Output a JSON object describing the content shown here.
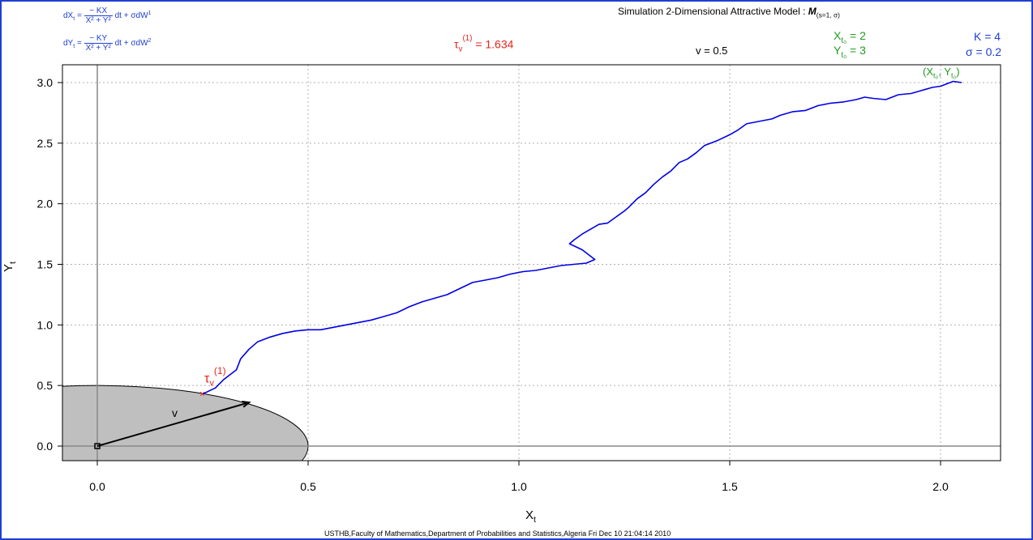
{
  "header": {
    "title": "Simulation 2-Dimensional Attractive Model :",
    "model_symbol": "M",
    "model_params": "(s=1, σ)"
  },
  "equations": {
    "dx_lhs": "dX",
    "dx_num": "− KX",
    "dx_den": "X² + Y²",
    "dx_rhs": "dt + σdW",
    "dy_lhs": "dY",
    "dy_num": "− KY",
    "dy_den": "X² + Y²",
    "dy_rhs": "dt + σdW"
  },
  "annotations": {
    "tau_symbol": "τ",
    "tau_sub": "v",
    "tau_sup": "(1)",
    "tau_value": "= 1.634",
    "v_text": "v = 0.5",
    "x0_text": "X",
    "x0_sub": "t₀",
    "x0_value": "= 2",
    "y0_text": "Y",
    "y0_sub": "t₀",
    "y0_value": "= 3",
    "k_text": "K = 4",
    "sigma_text": "σ = 0.2",
    "start_label": "(X",
    "start_label_mid": ", Y",
    "start_label_end": ")",
    "hit_label": "τ",
    "hit_label_sub": "v",
    "hit_label_sup": "(1)",
    "arrow_label": "v"
  },
  "footer": "USTHB,Faculty of Mathematics,Department of Probabilities and Statistics,Algeria Fri Dec 10 21:04:14 2010",
  "colors": {
    "path": "#0000e6",
    "red": "#e8241c",
    "green": "#1f9b1f",
    "blue": "#1f3fd0",
    "disc_fill": "#bfbfbf",
    "grid": "#b0b0b0"
  },
  "chart_data": {
    "type": "line",
    "xlabel": "X",
    "xlabel_sub": "t",
    "ylabel": "Y",
    "ylabel_sub": "t",
    "xlim": [
      -0.08,
      2.15
    ],
    "ylim": [
      -0.12,
      3.15
    ],
    "x_ticks": [
      0.0,
      0.5,
      1.0,
      1.5,
      2.0
    ],
    "y_ticks": [
      0.0,
      0.5,
      1.0,
      1.5,
      2.0,
      2.5,
      3.0
    ],
    "x_tick_labels": [
      "0.0",
      "0.5",
      "1.0",
      "1.5",
      "2.0"
    ],
    "y_tick_labels": [
      "0.0",
      "0.5",
      "1.0",
      "1.5",
      "2.0",
      "2.5",
      "3.0"
    ],
    "grid": true,
    "disc_radius": 0.5,
    "start_point": [
      2.0,
      3.0
    ],
    "hit_point": [
      0.25,
      0.43
    ],
    "arrow_from": [
      0.0,
      0.0
    ],
    "arrow_to": [
      0.36,
      0.36
    ],
    "series": [
      {
        "x": [
          2.05,
          2.03,
          2.0,
          1.98,
          1.95,
          1.93,
          1.9,
          1.87,
          1.84,
          1.82,
          1.8,
          1.77,
          1.74,
          1.71,
          1.68,
          1.65,
          1.62,
          1.6,
          1.57,
          1.54,
          1.52,
          1.5,
          1.47,
          1.44,
          1.42,
          1.4,
          1.38,
          1.36,
          1.34,
          1.32,
          1.3,
          1.28,
          1.26,
          1.25,
          1.23,
          1.21,
          1.19,
          1.17,
          1.15,
          1.13,
          1.12,
          1.15,
          1.18,
          1.16,
          1.13,
          1.1,
          1.07,
          1.04,
          1.01,
          0.98,
          0.95,
          0.92,
          0.89,
          0.86,
          0.83,
          0.8,
          0.77,
          0.74,
          0.71,
          0.68,
          0.65,
          0.62,
          0.59,
          0.56,
          0.53,
          0.5,
          0.47,
          0.44,
          0.41,
          0.38,
          0.36,
          0.34,
          0.33,
          0.3,
          0.28,
          0.25
        ],
        "y": [
          3.0,
          3.01,
          2.97,
          2.96,
          2.93,
          2.91,
          2.9,
          2.86,
          2.87,
          2.88,
          2.86,
          2.84,
          2.83,
          2.81,
          2.77,
          2.76,
          2.73,
          2.7,
          2.68,
          2.66,
          2.61,
          2.57,
          2.52,
          2.48,
          2.42,
          2.37,
          2.34,
          2.27,
          2.22,
          2.16,
          2.09,
          2.04,
          1.97,
          1.94,
          1.89,
          1.84,
          1.83,
          1.79,
          1.75,
          1.7,
          1.67,
          1.62,
          1.54,
          1.51,
          1.5,
          1.49,
          1.47,
          1.45,
          1.44,
          1.42,
          1.39,
          1.37,
          1.35,
          1.3,
          1.25,
          1.22,
          1.19,
          1.15,
          1.1,
          1.07,
          1.04,
          1.02,
          1.0,
          0.98,
          0.96,
          0.96,
          0.95,
          0.93,
          0.9,
          0.86,
          0.8,
          0.72,
          0.63,
          0.55,
          0.48,
          0.43
        ]
      }
    ]
  }
}
